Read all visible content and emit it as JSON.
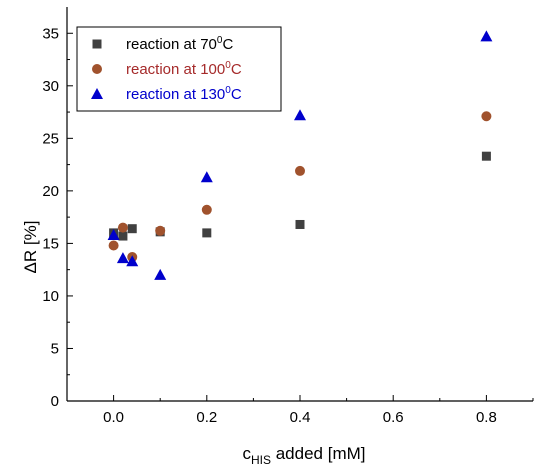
{
  "chart_data": {
    "type": "scatter",
    "title": "",
    "xlabel": {
      "main": "c",
      "sub": "HIS",
      "rest": " added [mM]"
    },
    "ylabel": "ΔR [%]",
    "xlim": [
      -0.1,
      0.9
    ],
    "ylim": [
      0,
      37.5
    ],
    "x_ticks": [
      0.0,
      0.2,
      0.4,
      0.6,
      0.8
    ],
    "x_tick_labels": [
      "0.0",
      "0.2",
      "0.4",
      "0.6",
      "0.8"
    ],
    "y_ticks": [
      0,
      5,
      10,
      15,
      20,
      25,
      30,
      35
    ],
    "y_tick_labels": [
      "0",
      "5",
      "10",
      "15",
      "20",
      "25",
      "30",
      "35"
    ],
    "grid": false,
    "legend_position": "top-left",
    "series": [
      {
        "name": {
          "main": "reaction at 70",
          "sup": "0",
          "rest": "C"
        },
        "marker": "square",
        "color": "#404040",
        "text_color": "#000000",
        "points": [
          {
            "x": 0.0,
            "y": 16.0
          },
          {
            "x": 0.02,
            "y": 15.7
          },
          {
            "x": 0.04,
            "y": 16.4
          },
          {
            "x": 0.1,
            "y": 16.1
          },
          {
            "x": 0.2,
            "y": 16.0
          },
          {
            "x": 0.4,
            "y": 16.8
          },
          {
            "x": 0.8,
            "y": 23.3
          }
        ]
      },
      {
        "name": {
          "main": "reaction at 100",
          "sup": "0",
          "rest": "C"
        },
        "marker": "circle",
        "color": "#a0522d",
        "text_color": "#a52a2a",
        "points": [
          {
            "x": 0.0,
            "y": 14.8
          },
          {
            "x": 0.02,
            "y": 16.5
          },
          {
            "x": 0.04,
            "y": 13.7
          },
          {
            "x": 0.1,
            "y": 16.2
          },
          {
            "x": 0.2,
            "y": 18.2
          },
          {
            "x": 0.4,
            "y": 21.9
          },
          {
            "x": 0.8,
            "y": 27.1
          }
        ]
      },
      {
        "name": {
          "main": "reaction at 130",
          "sup": "0",
          "rest": "C"
        },
        "marker": "triangle",
        "color": "#0000cc",
        "text_color": "#0000cc",
        "points": [
          {
            "x": 0.0,
            "y": 15.8
          },
          {
            "x": 0.02,
            "y": 13.6
          },
          {
            "x": 0.04,
            "y": 13.3
          },
          {
            "x": 0.1,
            "y": 12.0
          },
          {
            "x": 0.2,
            "y": 21.3
          },
          {
            "x": 0.4,
            "y": 27.2
          },
          {
            "x": 0.8,
            "y": 34.7
          }
        ]
      }
    ]
  }
}
